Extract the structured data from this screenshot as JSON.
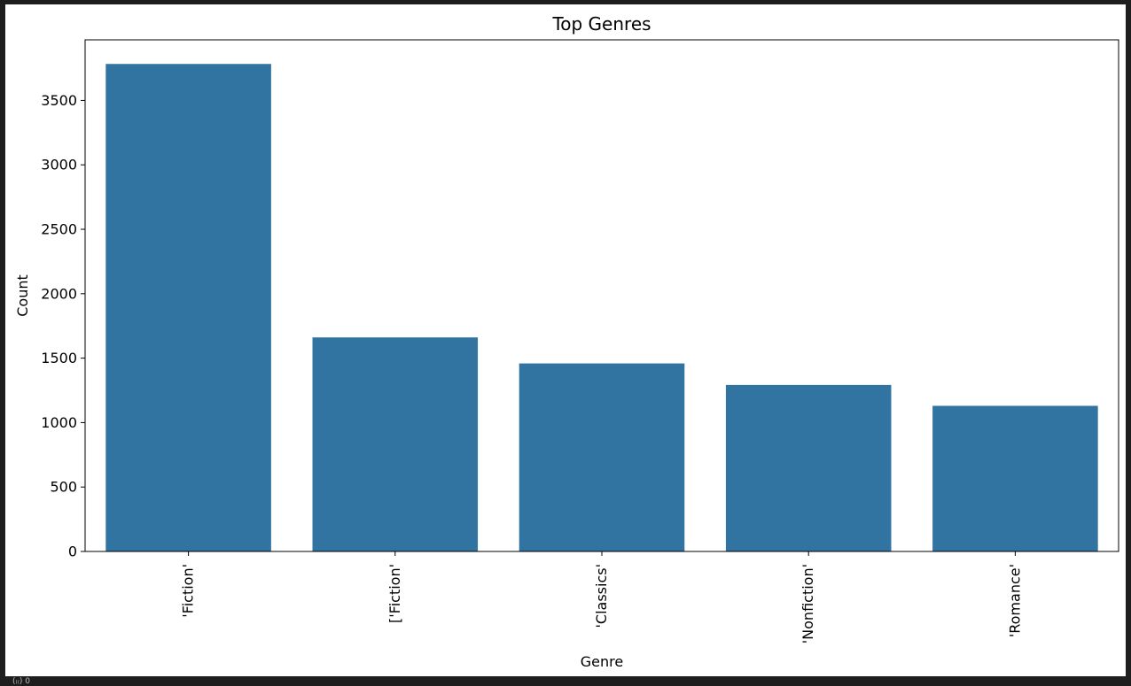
{
  "chart_data": {
    "type": "bar",
    "title": "Top Genres",
    "xlabel": "Genre",
    "ylabel": "Count",
    "categories": [
      "'Fiction'",
      "['Fiction'",
      "'Classics'",
      "'Nonfiction'",
      "'Romance'"
    ],
    "values": [
      3783,
      1661,
      1459,
      1292,
      1130
    ],
    "ylim": [
      0,
      3970
    ],
    "yticks": [
      0,
      500,
      1000,
      1500,
      2000,
      2500,
      3000,
      3500
    ],
    "bar_color": "#3274a1",
    "grid": false
  },
  "footer": {
    "status_text": "(₍₍) 0"
  }
}
